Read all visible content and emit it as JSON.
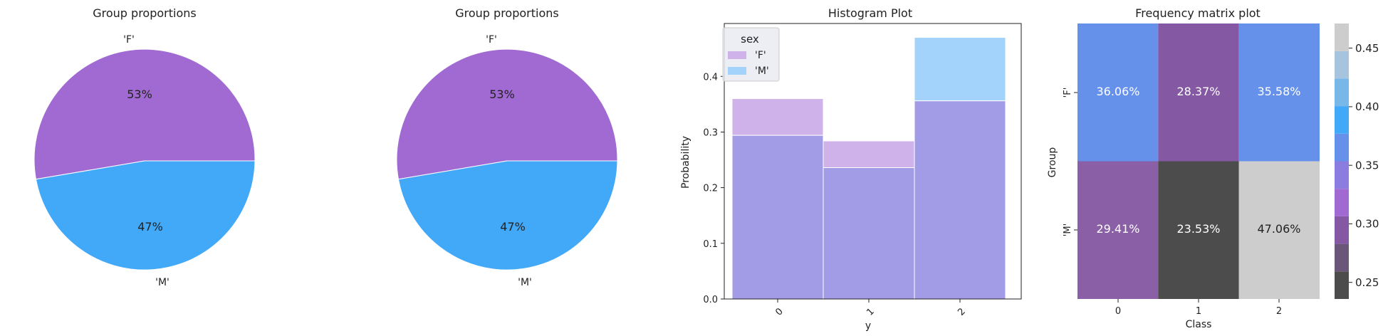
{
  "colors": {
    "F": "#a06ad2",
    "M": "#42a8f8",
    "hist_F": "#cfb2e9",
    "hist_M": "#a3d3fb",
    "hist_overlap": "#a29be6",
    "heat_36": "#6691eb",
    "heat_28": "#8458a3",
    "heat_29": "#8a5fa6",
    "heat_23": "#4c4c4c",
    "heat_47": "#cdcdcd"
  },
  "chart_data": [
    {
      "type": "pie",
      "title": "Group proportions",
      "labels": [
        "'F'",
        "'M'"
      ],
      "values": [
        53,
        47
      ],
      "value_labels": [
        "53%",
        "47%"
      ]
    },
    {
      "type": "pie",
      "title": "Group proportions",
      "labels": [
        "'F'",
        "'M'"
      ],
      "values": [
        53,
        47
      ],
      "value_labels": [
        "53%",
        "47%"
      ]
    },
    {
      "type": "bar",
      "title": "Histogram Plot",
      "xlabel": "y",
      "ylabel": "Probability",
      "categories": [
        "0",
        "1",
        "2"
      ],
      "series": [
        {
          "name": "'F'",
          "values": [
            0.36,
            0.284,
            0.356
          ]
        },
        {
          "name": "'M'",
          "values": [
            0.294,
            0.236,
            0.47
          ]
        }
      ],
      "ylim": [
        0,
        0.495
      ],
      "yticks": [
        "0.0",
        "0.1",
        "0.2",
        "0.3",
        "0.4"
      ],
      "legend_title": "sex",
      "legend_position": "top-left"
    },
    {
      "type": "heatmap",
      "title": "Frequency matrix plot",
      "xlabel": "Class",
      "ylabel": "Group",
      "x_categories": [
        "0",
        "1",
        "2"
      ],
      "y_categories": [
        "'F'",
        "'M'"
      ],
      "values": [
        [
          36.06,
          28.37,
          35.58
        ],
        [
          29.41,
          23.53,
          47.06
        ]
      ],
      "cell_labels": [
        [
          "36.06%",
          "28.37%",
          "35.58%"
        ],
        [
          "29.41%",
          "23.53%",
          "47.06%"
        ]
      ],
      "colorbar_ticks": [
        "0.25",
        "0.30",
        "0.35",
        "0.40",
        "0.45"
      ],
      "colorbar_range": [
        0.2353,
        0.4706
      ]
    }
  ]
}
